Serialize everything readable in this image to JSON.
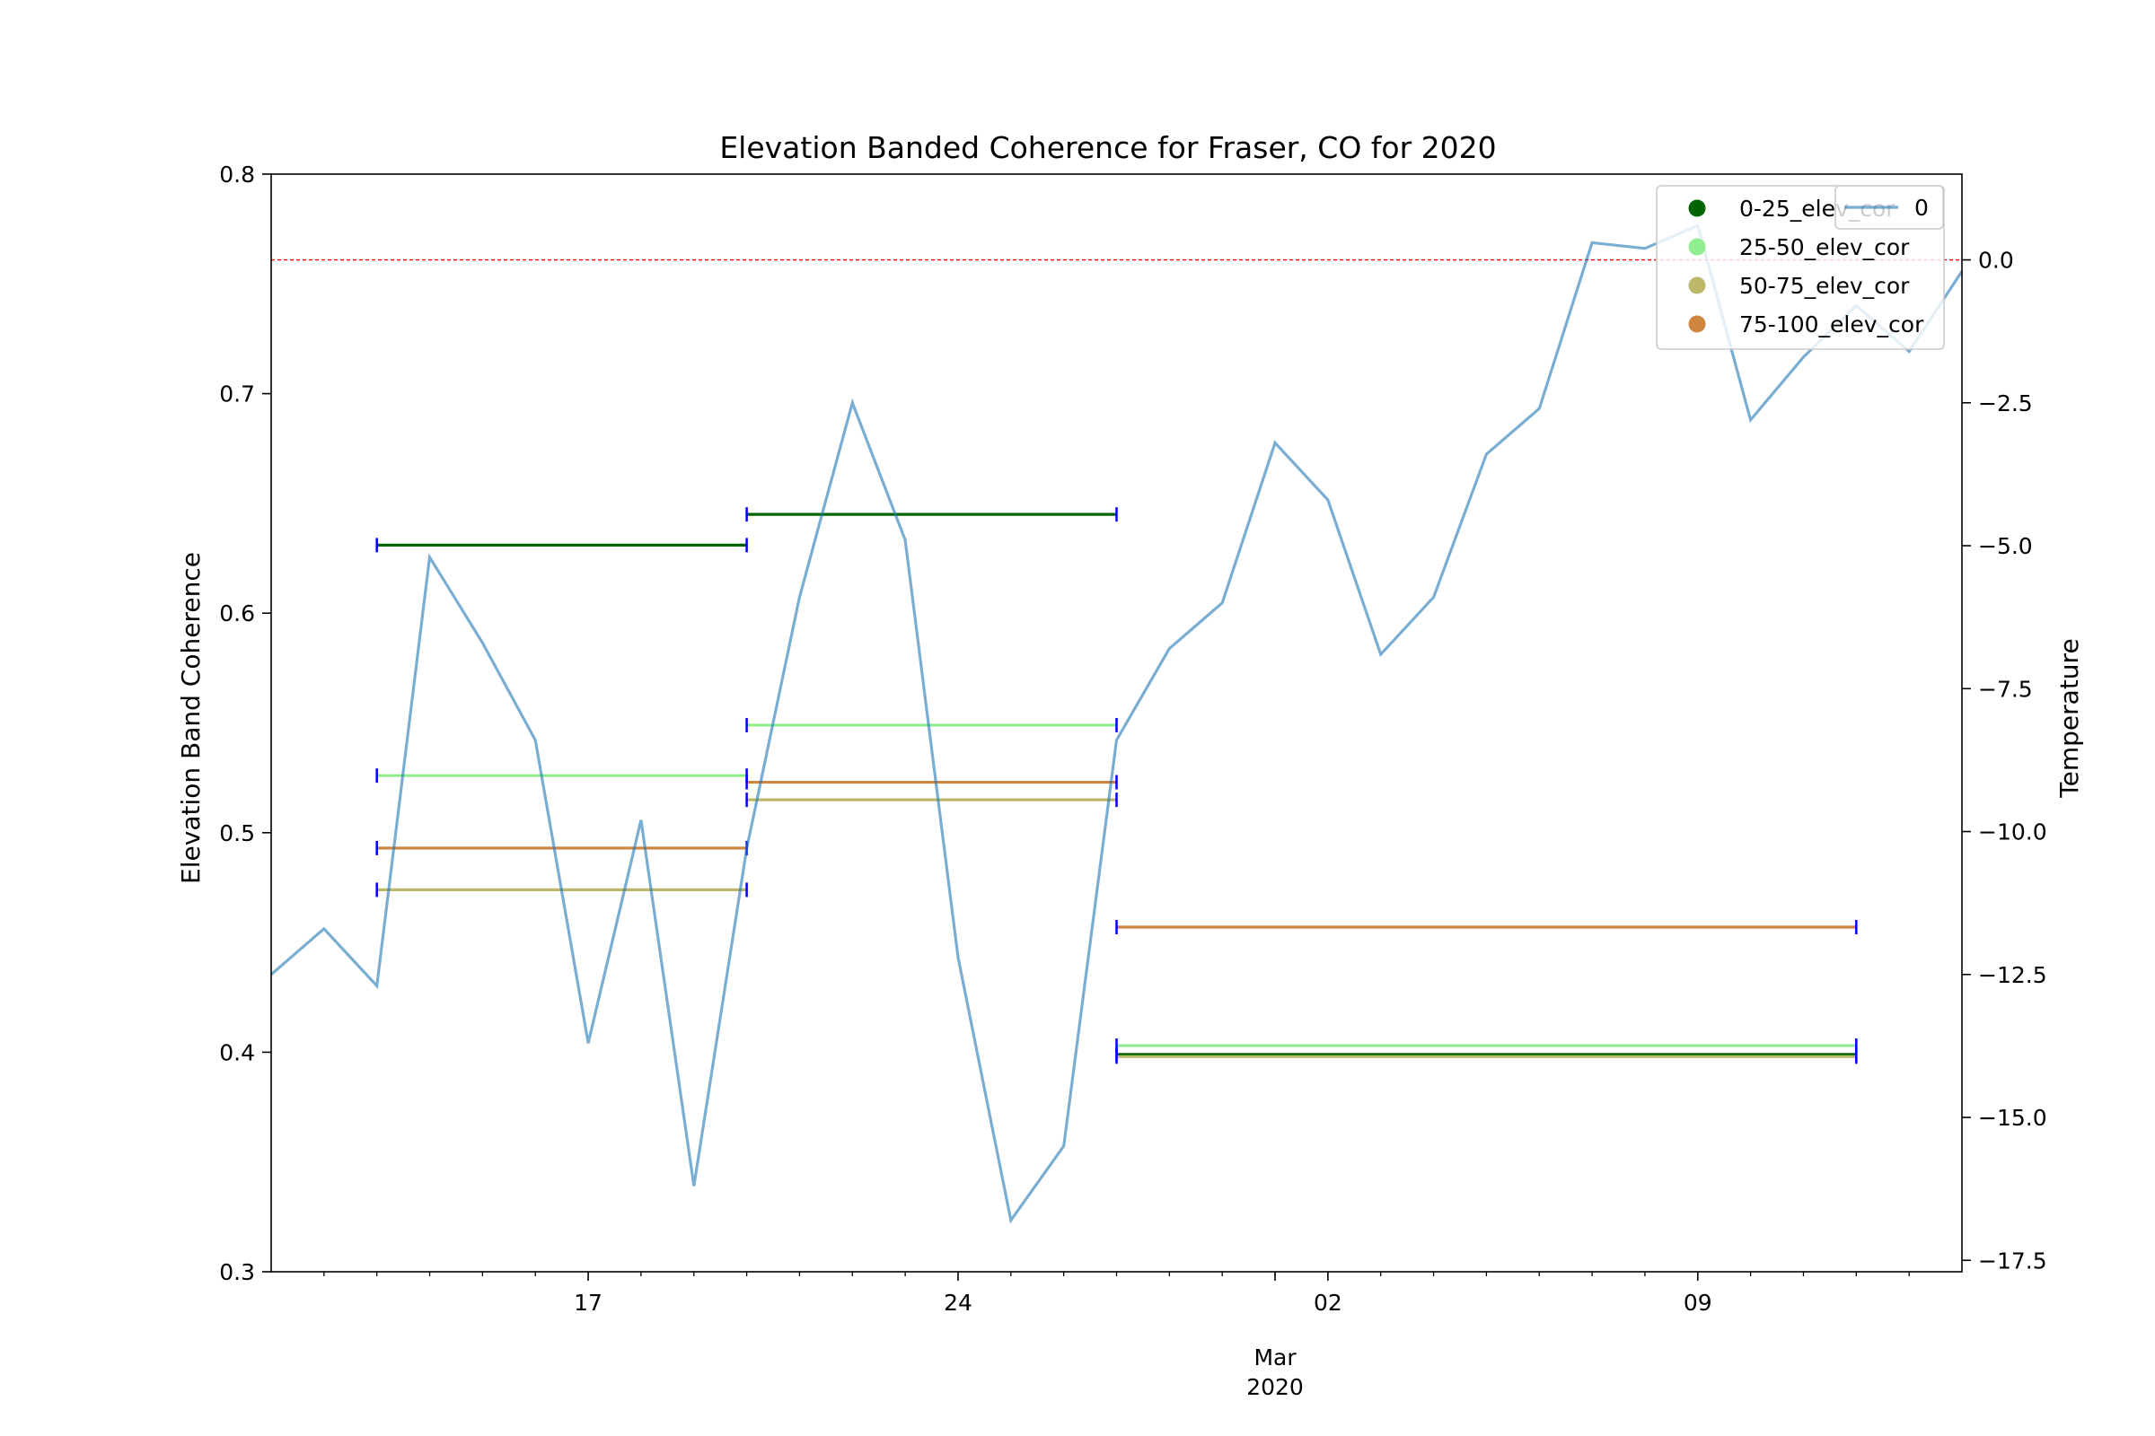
{
  "chart_data": {
    "type": "line",
    "title": "Elevation Banded Coherence for Fraser, CO for 2020",
    "ylabel": "Elevation Band Coherence",
    "y2label": "Temperature",
    "y2label_color": "#0000ff",
    "xlim": [
      "2020-02-11",
      "2020-03-14"
    ],
    "ylim": [
      0.3,
      0.8
    ],
    "y2lim": [
      -17.7,
      1.5
    ],
    "x_ticks": [
      {
        "date": "2020-02-17",
        "label": "17"
      },
      {
        "date": "2020-02-24",
        "label": "24"
      },
      {
        "date": "2020-03-02",
        "label": "02"
      },
      {
        "date": "2020-03-09",
        "label": "09"
      }
    ],
    "x_minor_ticks": [
      "2020-02-12",
      "2020-02-13",
      "2020-02-14",
      "2020-02-15",
      "2020-02-16",
      "2020-02-18",
      "2020-02-19",
      "2020-02-20",
      "2020-02-21",
      "2020-02-22",
      "2020-02-23",
      "2020-02-25",
      "2020-02-26",
      "2020-02-27",
      "2020-02-28",
      "2020-02-29",
      "2020-03-01",
      "2020-03-03",
      "2020-03-04",
      "2020-03-05",
      "2020-03-06",
      "2020-03-07",
      "2020-03-08",
      "2020-03-10",
      "2020-03-11",
      "2020-03-12",
      "2020-03-13"
    ],
    "month_label": {
      "date": "2020-03-01",
      "month": "Mar",
      "year": "2020"
    },
    "y_ticks": [
      "0.3",
      "0.4",
      "0.5",
      "0.6",
      "0.7",
      "0.8"
    ],
    "y2_ticks": [
      "0.0",
      "−2.5",
      "−5.0",
      "−7.5",
      "−10.0",
      "−12.5",
      "−15.0",
      "−17.5"
    ],
    "reference_line": {
      "axis": "y2",
      "value": 0.0,
      "color": "#ff0000",
      "style": "dashed"
    },
    "legend": {
      "placement": "top-right",
      "entries": [
        {
          "label": "0-25_elev_cor",
          "color": "#006400"
        },
        {
          "label": "25-50_elev_cor",
          "color": "#90ee90"
        },
        {
          "label": "50-75_elev_cor",
          "color": "#bdb76b"
        },
        {
          "label": "75-100_elev_cor",
          "color": "#cd853f"
        }
      ]
    },
    "legend2": {
      "placement": "top-right",
      "entries": [
        {
          "label": "0",
          "color": "#1f77b4"
        }
      ]
    },
    "error_bar_color": "#0000ff",
    "series": [
      {
        "name": "0-25_elev_cor",
        "color": "#006400",
        "segments": [
          {
            "start": "2020-02-13",
            "end": "2020-02-20",
            "value": 0.631
          },
          {
            "start": "2020-02-20",
            "end": "2020-02-27",
            "value": 0.645
          },
          {
            "start": "2020-02-27",
            "end": "2020-03-12",
            "value": 0.399
          }
        ]
      },
      {
        "name": "25-50_elev_cor",
        "color": "#90ee90",
        "segments": [
          {
            "start": "2020-02-13",
            "end": "2020-02-20",
            "value": 0.526
          },
          {
            "start": "2020-02-20",
            "end": "2020-02-27",
            "value": 0.549
          },
          {
            "start": "2020-02-27",
            "end": "2020-03-12",
            "value": 0.403
          }
        ]
      },
      {
        "name": "50-75_elev_cor",
        "color": "#bdb76b",
        "segments": [
          {
            "start": "2020-02-13",
            "end": "2020-02-20",
            "value": 0.474
          },
          {
            "start": "2020-02-20",
            "end": "2020-02-27",
            "value": 0.515
          },
          {
            "start": "2020-02-27",
            "end": "2020-03-12",
            "value": 0.398
          }
        ]
      },
      {
        "name": "75-100_elev_cor",
        "color": "#cd853f",
        "segments": [
          {
            "start": "2020-02-13",
            "end": "2020-02-20",
            "value": 0.493
          },
          {
            "start": "2020-02-20",
            "end": "2020-02-27",
            "value": 0.523
          },
          {
            "start": "2020-02-27",
            "end": "2020-03-12",
            "value": 0.457
          }
        ]
      }
    ],
    "temperature": {
      "name": "0",
      "axis": "y2",
      "color": "#1f77b4",
      "x": [
        "2020-02-11",
        "2020-02-12",
        "2020-02-13",
        "2020-02-14",
        "2020-02-15",
        "2020-02-16",
        "2020-02-17",
        "2020-02-18",
        "2020-02-19",
        "2020-02-20",
        "2020-02-21",
        "2020-02-22",
        "2020-02-23",
        "2020-02-24",
        "2020-02-25",
        "2020-02-26",
        "2020-02-27",
        "2020-02-28",
        "2020-02-29",
        "2020-03-01",
        "2020-03-02",
        "2020-03-03",
        "2020-03-04",
        "2020-03-05",
        "2020-03-06",
        "2020-03-07",
        "2020-03-08",
        "2020-03-09",
        "2020-03-10",
        "2020-03-11",
        "2020-03-12",
        "2020-03-13",
        "2020-03-14"
      ],
      "values": [
        -12.5,
        -11.7,
        -12.7,
        -5.2,
        -6.7,
        -8.4,
        -13.7,
        -9.8,
        -16.2,
        -10.3,
        -5.9,
        -2.5,
        -4.9,
        -12.2,
        -16.8,
        -15.5,
        -8.4,
        -6.8,
        -6.0,
        -3.2,
        -4.2,
        -6.9,
        -5.9,
        -3.4,
        -2.6,
        0.3,
        0.2,
        0.6,
        -2.8,
        -1.7,
        -0.8,
        -1.6,
        -0.2
      ]
    }
  }
}
